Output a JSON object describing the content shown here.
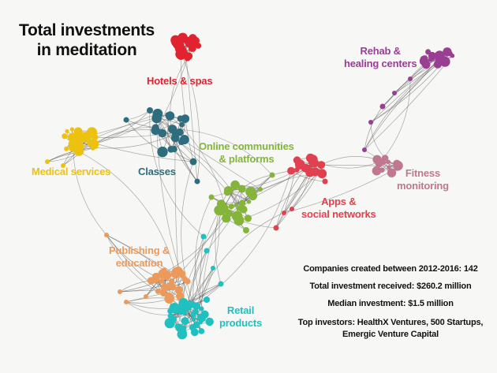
{
  "title": "Total investments\nin meditation",
  "clusters": [
    {
      "id": "hotels",
      "label": "Hotels & spas",
      "color": "#e0232f"
    },
    {
      "id": "medical",
      "label": "Medical services",
      "color": "#ecc20f"
    },
    {
      "id": "classes",
      "label": "Classes",
      "color": "#2e6d7e"
    },
    {
      "id": "online",
      "label": "Online communities\n& platforms",
      "color": "#84b53a"
    },
    {
      "id": "apps",
      "label": "Apps &\nsocial networks",
      "color": "#e0404f"
    },
    {
      "id": "rehab",
      "label": "Rehab &\nhealing centers",
      "color": "#9a3e94"
    },
    {
      "id": "fitness",
      "label": "Fitness\nmonitoring",
      "color": "#c07890"
    },
    {
      "id": "publishing",
      "label": "Publishing &\neducation",
      "color": "#ec9a5c"
    },
    {
      "id": "retail",
      "label": "Retail\nproducts",
      "color": "#1fc0c0"
    }
  ],
  "stats": {
    "companies": "Companies created between 2012-2016: 142",
    "total": "Total investment received: $260.2 million",
    "median": "Median investment: $1.5 million"
  },
  "investors": "Top investors: HealthX Ventures, 500 Startups,\nEmergic Venture Capital",
  "colors": {
    "background": "#f7f7f5",
    "edge": "#5a5a5a"
  }
}
